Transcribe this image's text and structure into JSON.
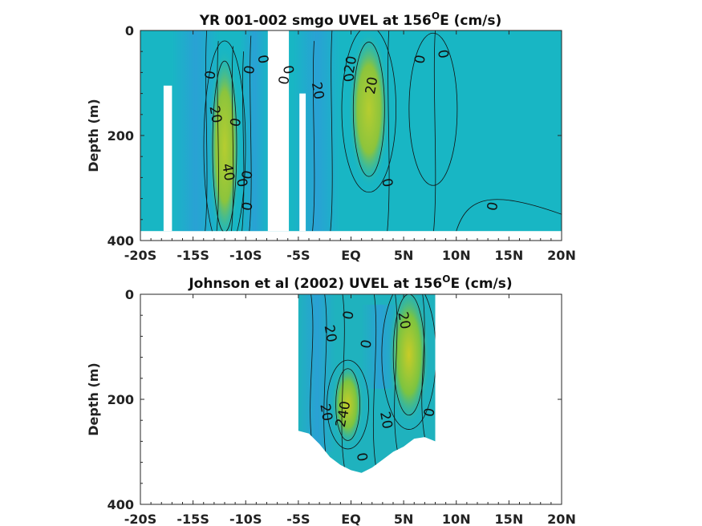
{
  "chart_data": [
    {
      "type": "heatmap",
      "title_main": "YR 001-002 smgo UVEL at 156",
      "title_sup": "O",
      "title_tail": "E (cm/s)",
      "ylabel": "Depth (m)",
      "xlabel": "",
      "x_ticks": [
        "-20S",
        "-15S",
        "-10S",
        "-5S",
        "EQ",
        "5N",
        "10N",
        "15N",
        "20N"
      ],
      "y_ticks": [
        "0",
        "200",
        "400"
      ],
      "xlim": [
        -20,
        20
      ],
      "ylim": [
        0,
        400
      ],
      "y_reversed": true,
      "colormap": "parula",
      "colors": {
        "background": "#18b6c4",
        "weak_negative": "#2b9fd6",
        "jet": "#8cc43c",
        "jet_core": "#b6cd30"
      },
      "data_extent": {
        "lat": [
          -20,
          20
        ],
        "depth": [
          0,
          382
        ]
      },
      "missing_columns": [
        [
          -17.8,
          -17.0
        ],
        [
          -7.9,
          -5.9
        ],
        [
          -4.9,
          -4.3
        ]
      ],
      "missing_depth_from": {
        "-17.8": 105,
        "-4.9": 120
      },
      "jets": [
        {
          "lat": -12.0,
          "depth_top": 60,
          "depth_bottom": 382,
          "speed_cms": 40
        },
        {
          "lat": 1.7,
          "depth_top": 30,
          "depth_bottom": 270,
          "speed_cms": 30
        }
      ],
      "contour_labels": [
        {
          "text": "0",
          "lat": -13.3,
          "depth": 85
        },
        {
          "text": "0",
          "lat": -8.4,
          "depth": 55
        },
        {
          "text": "0",
          "lat": -9.6,
          "depth": 75
        },
        {
          "text": "20",
          "lat": -12.9,
          "depth": 160
        },
        {
          "text": "0",
          "lat": -10.9,
          "depth": 175
        },
        {
          "text": "40",
          "lat": -11.7,
          "depth": 270
        },
        {
          "text": "0",
          "lat": -9.8,
          "depth": 275
        },
        {
          "text": "0",
          "lat": -10.4,
          "depth": 290
        },
        {
          "text": "0",
          "lat": -9.8,
          "depth": 335
        },
        {
          "text": "0",
          "lat": -6.0,
          "depth": 75
        },
        {
          "text": "0",
          "lat": -6.3,
          "depth": 95
        },
        {
          "text": "20",
          "lat": -3.2,
          "depth": 115
        },
        {
          "text": "20",
          "lat": 0.0,
          "depth": 65
        },
        {
          "text": "0",
          "lat": -0.3,
          "depth": 90
        },
        {
          "text": "20",
          "lat": 2.0,
          "depth": 105
        },
        {
          "text": "0",
          "lat": 3.4,
          "depth": 290
        },
        {
          "text": "0",
          "lat": 6.6,
          "depth": 55
        },
        {
          "text": "0",
          "lat": 8.7,
          "depth": 45
        },
        {
          "text": "0",
          "lat": 13.5,
          "depth": 335
        }
      ]
    },
    {
      "type": "heatmap",
      "title_main": "Johnson et al (2002) UVEL at 156",
      "title_sup": "O",
      "title_tail": "E (cm/s)",
      "ylabel": "Depth (m)",
      "xlabel": "",
      "x_ticks": [
        "-20S",
        "-15S",
        "-10S",
        "-5S",
        "EQ",
        "5N",
        "10N",
        "15N",
        "20N"
      ],
      "y_ticks": [
        "0",
        "200",
        "400"
      ],
      "xlim": [
        -20,
        20
      ],
      "ylim": [
        0,
        400
      ],
      "y_reversed": true,
      "colormap": "parula",
      "colors": {
        "background": "#1fb2be",
        "weak_negative": "#2a98d8",
        "jet": "#7cc440",
        "jet_core": "#c8cc28"
      },
      "data_extent": {
        "lat": [
          -5,
          8
        ],
        "depth": [
          0,
          355
        ]
      },
      "bottom_profile": [
        [
          -5,
          260
        ],
        [
          -4,
          265
        ],
        [
          -3,
          285
        ],
        [
          -2,
          310
        ],
        [
          -1,
          325
        ],
        [
          0,
          335
        ],
        [
          1,
          340
        ],
        [
          2,
          330
        ],
        [
          3,
          315
        ],
        [
          4,
          300
        ],
        [
          5,
          290
        ],
        [
          6,
          275
        ],
        [
          7,
          272
        ],
        [
          8,
          280
        ]
      ],
      "jets": [
        {
          "lat": -0.3,
          "depth_top": 160,
          "depth_bottom": 260,
          "speed_cms": 45
        },
        {
          "lat": 5.5,
          "depth_top": 10,
          "depth_bottom": 220,
          "speed_cms": 30
        }
      ],
      "contour_labels": [
        {
          "text": "0",
          "lat": -0.2,
          "depth": 40
        },
        {
          "text": "20",
          "lat": -2.0,
          "depth": 75
        },
        {
          "text": "0",
          "lat": 1.5,
          "depth": 95
        },
        {
          "text": "20",
          "lat": 5.0,
          "depth": 50
        },
        {
          "text": "40",
          "lat": -0.6,
          "depth": 220
        },
        {
          "text": "20",
          "lat": -2.4,
          "depth": 225
        },
        {
          "text": "2",
          "lat": -0.9,
          "depth": 245
        },
        {
          "text": "20",
          "lat": 3.3,
          "depth": 240
        },
        {
          "text": "0",
          "lat": 7.5,
          "depth": 225
        },
        {
          "text": "0",
          "lat": 1.0,
          "depth": 310
        }
      ]
    }
  ]
}
